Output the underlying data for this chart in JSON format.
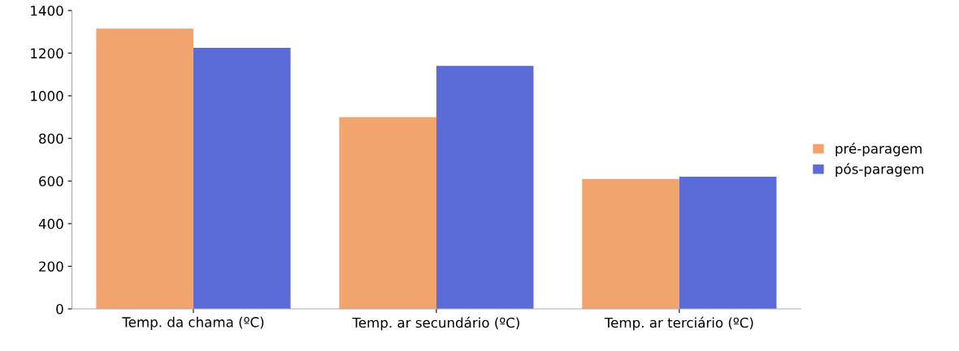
{
  "chart_data": {
    "type": "bar",
    "categories": [
      "Temp. da chama (ºC)",
      "Temp. ar secundário (ºC)",
      "Temp. ar terciário (ºC)"
    ],
    "series": [
      {
        "name": "pré-paragem",
        "color": "#f2a46e",
        "values": [
          1315,
          900,
          610
        ]
      },
      {
        "name": "pós-paragem",
        "color": "#5b6bd8",
        "values": [
          1225,
          1140,
          620
        ]
      }
    ],
    "ylim": [
      0,
      1400
    ],
    "yticks": [
      0,
      200,
      400,
      600,
      800,
      1000,
      1200,
      1400
    ],
    "grid": false,
    "legend": "right"
  }
}
